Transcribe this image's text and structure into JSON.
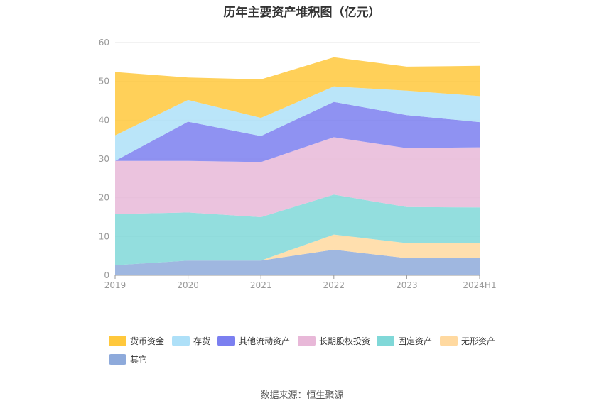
{
  "title": "历年主要资产堆积图（亿元）",
  "source": "数据来源：恒生聚源",
  "chart_data": {
    "type": "area",
    "stacked": true,
    "categories": [
      "2019",
      "2020",
      "2021",
      "2022",
      "2023",
      "2024H1"
    ],
    "ylim": [
      0,
      60
    ],
    "yticks": [
      "0",
      "10",
      "20",
      "30",
      "40",
      "50",
      "60"
    ],
    "grid": true,
    "legend_position": "bottom",
    "series": [
      {
        "name": "其它",
        "color": "#8eaadb",
        "values": [
          2.6,
          3.8,
          3.8,
          6.6,
          4.4,
          4.4
        ]
      },
      {
        "name": "无形资产",
        "color": "#ffd9a0",
        "values": [
          0.0,
          0.0,
          0.0,
          3.9,
          3.9,
          4.0
        ]
      },
      {
        "name": "固定资产",
        "color": "#80d8d8",
        "values": [
          13.2,
          12.4,
          11.2,
          10.3,
          9.3,
          9.1
        ]
      },
      {
        "name": "长期股权投资",
        "color": "#e8b8d8",
        "values": [
          13.7,
          13.3,
          14.2,
          14.8,
          15.2,
          15.5
        ]
      },
      {
        "name": "其他流动资产",
        "color": "#7b7ff0",
        "values": [
          0.0,
          10.1,
          6.7,
          9.1,
          8.5,
          6.5
        ]
      },
      {
        "name": "存货",
        "color": "#aee0f8",
        "values": [
          6.6,
          5.6,
          4.7,
          4.0,
          6.3,
          6.7
        ]
      },
      {
        "name": "货币资金",
        "color": "#ffc83c",
        "values": [
          16.3,
          5.8,
          9.9,
          7.5,
          6.2,
          7.8
        ]
      }
    ]
  },
  "legend": {
    "items": [
      {
        "name": "货币资金",
        "color": "#ffc83c"
      },
      {
        "name": "存货",
        "color": "#aee0f8"
      },
      {
        "name": "其他流动资产",
        "color": "#7b7ff0"
      },
      {
        "name": "长期股权投资",
        "color": "#e8b8d8"
      },
      {
        "name": "固定资产",
        "color": "#80d8d8"
      },
      {
        "name": "无形资产",
        "color": "#ffd9a0"
      },
      {
        "name": "其它",
        "color": "#8eaadb"
      }
    ]
  }
}
